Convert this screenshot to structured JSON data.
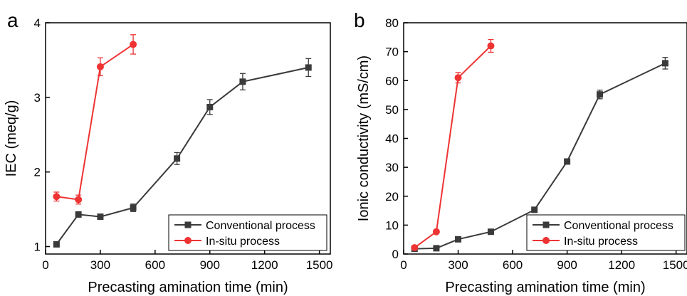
{
  "chart_data": [
    {
      "type": "line",
      "panel_label": "a",
      "xlabel": "Precasting amination time (min)",
      "ylabel": "IEC (meq/g)",
      "xlim": [
        0,
        1560
      ],
      "ylim": [
        0.9,
        4.0
      ],
      "xticks": [
        0,
        300,
        600,
        900,
        1200,
        1500
      ],
      "xtick_labels": [
        "0",
        "300",
        "600",
        "900",
        "1200",
        "1500"
      ],
      "yticks": [
        1,
        2,
        3,
        4
      ],
      "ytick_labels": [
        "1",
        "2",
        "3",
        "4"
      ],
      "grid": false,
      "legend_position": "bottom-right",
      "series": [
        {
          "name": "Conventional process",
          "color": "#3a3a3a",
          "marker": "square",
          "x": [
            60,
            180,
            300,
            480,
            720,
            900,
            1080,
            1440
          ],
          "y": [
            1.03,
            1.43,
            1.4,
            1.52,
            2.18,
            2.87,
            3.21,
            3.4
          ],
          "error": [
            0,
            0.03,
            0.03,
            0.05,
            0.08,
            0.1,
            0.11,
            0.12
          ]
        },
        {
          "name": "In-situ process",
          "color": "#ee3333",
          "marker": "circle",
          "x": [
            60,
            180,
            300,
            480
          ],
          "y": [
            1.67,
            1.63,
            3.41,
            3.71
          ],
          "error": [
            0.06,
            0.06,
            0.12,
            0.13
          ]
        }
      ]
    },
    {
      "type": "line",
      "panel_label": "b",
      "xlabel": "Precasting amination time (min)",
      "ylabel": "Ionic conductivity (mS/cm)",
      "xlim": [
        0,
        1560
      ],
      "ylim": [
        0,
        80
      ],
      "xticks": [
        0,
        300,
        600,
        900,
        1200,
        1500
      ],
      "xtick_labels": [
        "0",
        "300",
        "600",
        "900",
        "1200",
        "1500"
      ],
      "yticks": [
        0,
        10,
        20,
        30,
        40,
        50,
        60,
        70,
        80
      ],
      "ytick_labels": [
        "0",
        "10",
        "20",
        "30",
        "40",
        "50",
        "60",
        "70",
        "80"
      ],
      "grid": false,
      "legend_position": "bottom-right",
      "series": [
        {
          "name": "Conventional process",
          "color": "#3a3a3a",
          "marker": "square",
          "x": [
            60,
            180,
            300,
            480,
            720,
            900,
            1080,
            1440
          ],
          "y": [
            1.8,
            2.0,
            5.1,
            7.7,
            15.3,
            32.0,
            55.2,
            66.0
          ],
          "error": [
            0,
            0,
            0.4,
            0.5,
            0.8,
            0.8,
            1.5,
            2.0
          ]
        },
        {
          "name": "In-situ process",
          "color": "#ee3333",
          "marker": "circle",
          "x": [
            60,
            180,
            300,
            480
          ],
          "y": [
            2.2,
            7.7,
            61.0,
            72.0
          ],
          "error": [
            0.3,
            0.4,
            1.8,
            2.2
          ]
        }
      ]
    }
  ]
}
